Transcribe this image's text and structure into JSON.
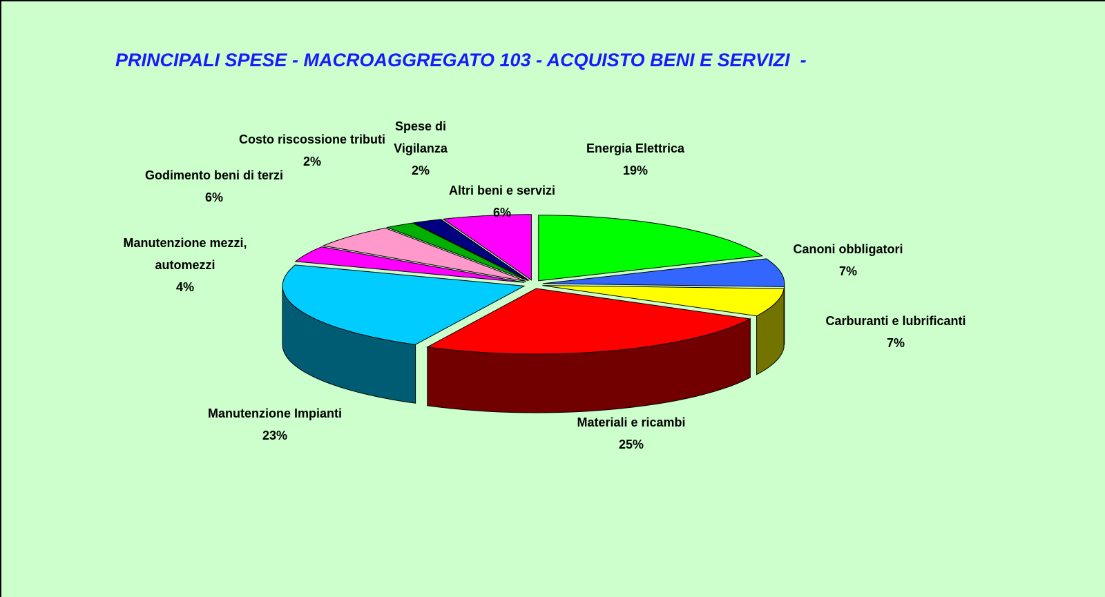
{
  "chart_data": {
    "type": "pie",
    "title": "PRINCIPALI SPESE - MACROAGGREGATO 103 - ACQUISTO BENI E SERVIZI  -",
    "categories": [
      "Energia Elettrica",
      "Canoni obbligatori",
      "Carburanti e lubrificanti",
      "Materiali e ricambi",
      "Manutenzione Impianti",
      "Manutenzione mezzi, automezzi",
      "Godimento beni di terzi",
      "Costo riscossione tributi",
      "Spese di Vigilanza",
      "Altri beni e servizi"
    ],
    "values": [
      19,
      7,
      7,
      25,
      23,
      4,
      6,
      2,
      2,
      6
    ],
    "value_labels": [
      "19%",
      "7%",
      "7%",
      "25%",
      "23%",
      "4%",
      "6%",
      "2%",
      "2%",
      "6%"
    ],
    "colors": [
      "#00ff00",
      "#3366ff",
      "#ffff00",
      "#ff0000",
      "#00ccff",
      "#ff00ff",
      "#ff99cc",
      "#00b000",
      "#000080",
      "#ff00ff"
    ]
  }
}
